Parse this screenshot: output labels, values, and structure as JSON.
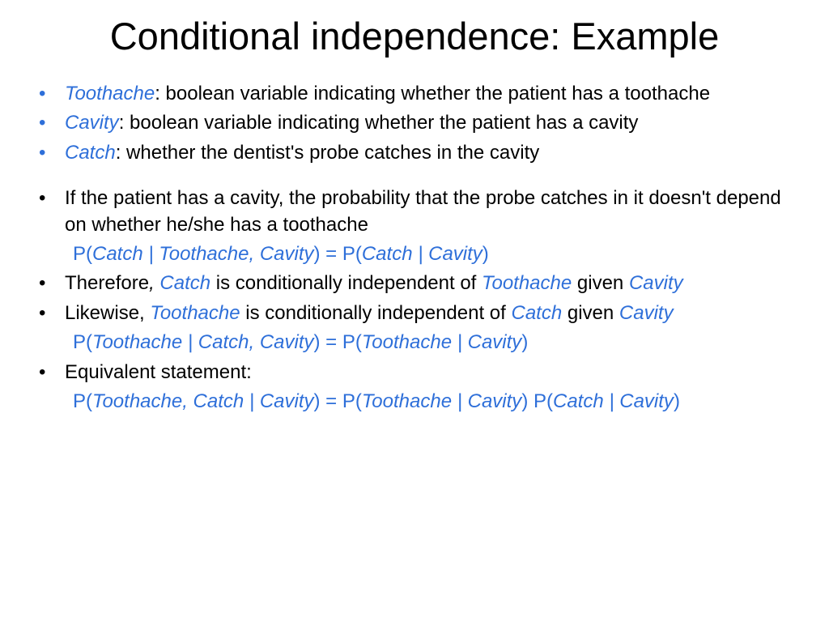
{
  "colors": {
    "text": "#000000",
    "accent": "#2e6fd9",
    "background": "#ffffff"
  },
  "typography": {
    "title_fontsize": 47,
    "body_fontsize": 24,
    "font_family": "Arial"
  },
  "title": "Conditional independence: Example",
  "defs": {
    "toothache_term": "Toothache",
    "toothache_text": ": boolean variable indicating whether the patient has a toothache",
    "cavity_term": "Cavity",
    "cavity_text": ": boolean variable indicating whether the patient has a cavity",
    "catch_term": "Catch",
    "catch_text": ": whether the dentist's probe catches in the cavity"
  },
  "body": {
    "b1": "If the patient has a cavity, the probability that the probe catches in it doesn't depend on whether he/she has a toothache",
    "f1_p1": "P(",
    "f1_i1": "Catch | Toothache, Cavity",
    "f1_p2": ") = P(",
    "f1_i2": "Catch | Cavity",
    "f1_p3": ")",
    "b2_a": "Therefore",
    "b2_comma": ", ",
    "b2_t1": "Catch",
    "b2_b": " is conditionally independent of ",
    "b2_t2": "Toothache",
    "b2_c": " given ",
    "b2_t3": "Cavity",
    "b3_a": "Likewise, ",
    "b3_t1": "Toothache",
    "b3_b": " is conditionally independent of ",
    "b3_t2": "Catch",
    "b3_c": " given ",
    "b3_t3": "Cavity",
    "f2_p1": "P(",
    "f2_i1": "Toothache | Catch, Cavity",
    "f2_p2": ") = P(",
    "f2_i2": "Toothache | Cavity",
    "f2_p3": ")",
    "b4": "Equivalent statement:",
    "f3_p1": "P(",
    "f3_i1": "Toothache, Catch | Cavity",
    "f3_p2": ") = P(",
    "f3_i2": "Toothache | Cavity",
    "f3_p3": ") P(",
    "f3_i3": "Catch | Cavity",
    "f3_p4": ")"
  }
}
